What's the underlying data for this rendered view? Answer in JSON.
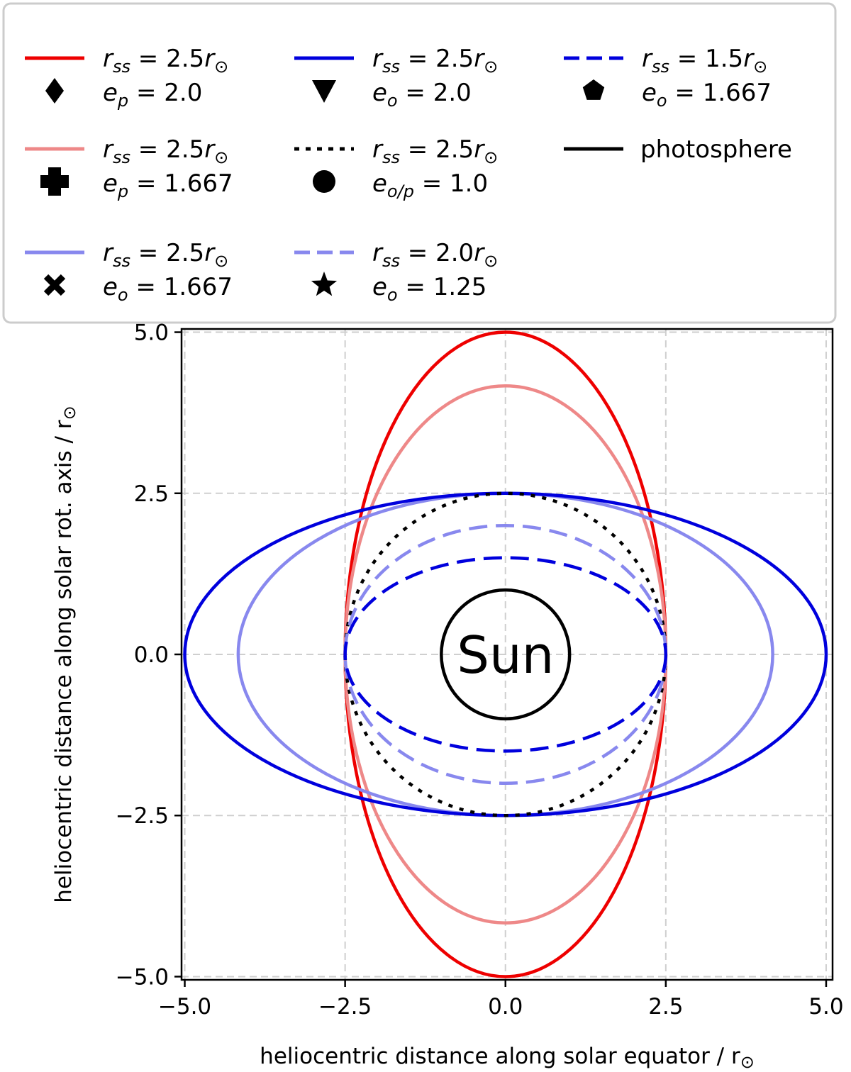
{
  "chart_data": {
    "type": "line",
    "xlabel": "heliocentric distance along solar equator / r",
    "ylabel": "heliocentric distance along solar rot. axis / r",
    "unit_symbol": "⊙",
    "xlim": [
      -5.05,
      5.1
    ],
    "ylim": [
      -5.05,
      5.05
    ],
    "xticks": [
      "−5.0",
      "−2.5",
      "0.0",
      "2.5",
      "5.0"
    ],
    "yticks": [
      "5.0",
      "2.5",
      "0.0",
      "−2.5",
      "−5.0"
    ],
    "xtick_values": [
      -5,
      -2.5,
      0,
      2.5,
      5
    ],
    "ytick_values": [
      5,
      2.5,
      0,
      -2.5,
      -5
    ],
    "grid": true,
    "legend_position": "top",
    "annotation": "Sun",
    "series": [
      {
        "key": "p2",
        "a": 2.5,
        "b": 5.0,
        "color": "#ee0000",
        "dash": "solid",
        "marker": "diamond",
        "r_ss": "2.5",
        "e_sym": "p",
        "e_val": "2.0"
      },
      {
        "key": "p167",
        "a": 2.5,
        "b": 4.167,
        "color": "#ee8888",
        "dash": "solid",
        "marker": "plus",
        "r_ss": "2.5",
        "e_sym": "p",
        "e_val": "1.667"
      },
      {
        "key": "o167",
        "a": 4.167,
        "b": 2.5,
        "color": "#8888ee",
        "dash": "solid",
        "marker": "x",
        "r_ss": "2.5",
        "e_sym": "o",
        "e_val": "1.667"
      },
      {
        "key": "o2",
        "a": 5.0,
        "b": 2.5,
        "color": "#0000dd",
        "dash": "solid",
        "marker": "triangle",
        "r_ss": "2.5",
        "e_sym": "o",
        "e_val": "2.0"
      },
      {
        "key": "e1",
        "a": 2.5,
        "b": 2.5,
        "color": "#000000",
        "dash": "dotted",
        "marker": "circle",
        "r_ss": "2.5",
        "e_sym": "o/p",
        "e_val": "1.0"
      },
      {
        "key": "o125",
        "a": 2.5,
        "b": 2.0,
        "color": "#8888ee",
        "dash": "dashed",
        "marker": "star",
        "r_ss": "2.0",
        "e_sym": "o",
        "e_val": "1.25"
      },
      {
        "key": "o15",
        "a": 2.5,
        "b": 1.5,
        "color": "#0000dd",
        "dash": "dashed",
        "marker": "pentagon",
        "r_ss": "1.5",
        "e_sym": "o",
        "e_val": "1.667"
      },
      {
        "key": "photo",
        "a": 1.0,
        "b": 1.0,
        "color": "#000000",
        "dash": "solid",
        "marker": "none",
        "label": "photosphere"
      }
    ]
  }
}
